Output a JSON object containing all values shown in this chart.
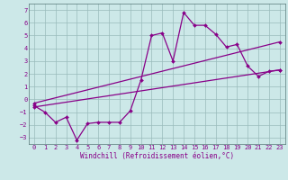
{
  "bg_color": "#cce8e8",
  "line_color": "#880088",
  "grid_color": "#99bbbb",
  "xlim": [
    -0.5,
    23.5
  ],
  "ylim": [
    -3.5,
    7.5
  ],
  "xticks": [
    0,
    1,
    2,
    3,
    4,
    5,
    6,
    7,
    8,
    9,
    10,
    11,
    12,
    13,
    14,
    15,
    16,
    17,
    18,
    19,
    20,
    21,
    22,
    23
  ],
  "yticks": [
    -3,
    -2,
    -1,
    0,
    1,
    2,
    3,
    4,
    5,
    6,
    7
  ],
  "xlabel": "Windchill (Refroidissement éolien,°C)",
  "line1_x": [
    0,
    1,
    2,
    3,
    4,
    5,
    6,
    7,
    8,
    9,
    10,
    11,
    12,
    13,
    14,
    15,
    16,
    17,
    18,
    19,
    20,
    21,
    22,
    23
  ],
  "line1_y": [
    -0.5,
    -1.0,
    -1.8,
    -1.4,
    -3.2,
    -1.9,
    -1.8,
    -1.8,
    -1.8,
    -0.9,
    1.5,
    5.0,
    5.2,
    3.0,
    6.8,
    5.8,
    5.8,
    5.1,
    4.1,
    4.3,
    2.6,
    1.8,
    2.2,
    2.3
  ],
  "line2_x": [
    0,
    23
  ],
  "line2_y": [
    -0.6,
    2.3
  ],
  "line3_x": [
    0,
    23
  ],
  "line3_y": [
    -0.3,
    4.5
  ],
  "tick_fontsize": 5,
  "xlabel_fontsize": 5.5,
  "lw": 0.9,
  "marker_size": 2.0
}
